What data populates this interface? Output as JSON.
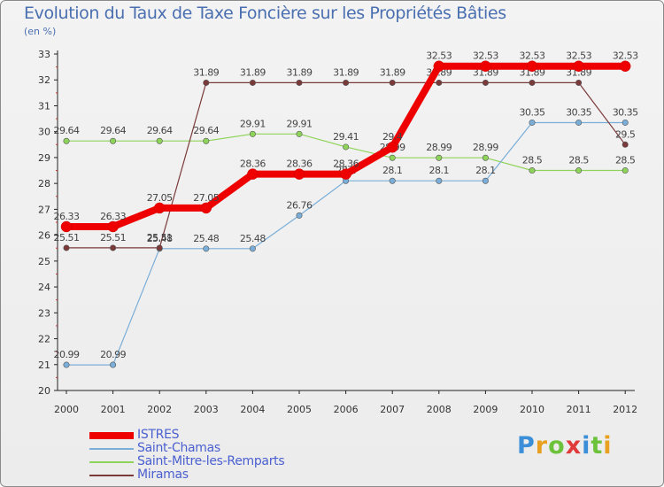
{
  "chart_data": {
    "type": "line",
    "title": "Evolution du Taux de Taxe Foncière sur les Propriétés Bâties",
    "subtitle": "(en %)",
    "x": [
      "2000",
      "2001",
      "2002",
      "2003",
      "2004",
      "2005",
      "2006",
      "2007",
      "2008",
      "2009",
      "2010",
      "2011",
      "2012"
    ],
    "ylim": [
      20,
      33
    ],
    "yticks": [
      "20",
      "21",
      "22",
      "23",
      "24",
      "25",
      "26",
      "27",
      "28",
      "29",
      "30",
      "31",
      "32",
      "33"
    ],
    "series": [
      {
        "name": "Saint-Mitre-les-Remparts",
        "color": "#8fd45a",
        "values": [
          29.64,
          29.64,
          29.64,
          29.64,
          29.91,
          29.91,
          29.41,
          28.99,
          28.99,
          28.99,
          28.5,
          28.5,
          28.5
        ],
        "labels": [
          "29.64",
          "29.64",
          "29.64",
          "29.64",
          "29.91",
          "29.91",
          "29.41",
          "28.99",
          "28.99",
          "28.99",
          "28.5",
          "28.5",
          "28.5"
        ]
      },
      {
        "name": "Saint-Chamas",
        "color": "#7aaed8",
        "values": [
          20.99,
          20.99,
          25.48,
          25.48,
          25.48,
          26.76,
          28.1,
          28.1,
          28.1,
          28.1,
          30.35,
          30.35,
          30.35
        ],
        "labels": [
          "20.99",
          "20.99",
          "25.48",
          "25.48",
          "25.48",
          "26.76",
          "28.1",
          "28.1",
          "28.1",
          "28.1",
          "30.35",
          "30.35",
          "30.35"
        ]
      },
      {
        "name": "Miramas",
        "color": "#7a3a3a",
        "values": [
          25.51,
          25.51,
          25.51,
          31.89,
          31.89,
          31.89,
          31.89,
          31.89,
          31.89,
          31.89,
          31.89,
          31.89,
          29.5
        ],
        "labels": [
          "25.51",
          "25.51",
          "25.51",
          "31.89",
          "31.89",
          "31.89",
          "31.89",
          "31.89",
          "31.89",
          "31.89",
          "31.89",
          "31.89",
          "29.5"
        ]
      },
      {
        "name": "ISTRES",
        "color": "#ee0000",
        "values": [
          26.33,
          26.33,
          27.05,
          27.05,
          28.36,
          28.36,
          28.36,
          29.4,
          32.53,
          32.53,
          32.53,
          32.53,
          32.53
        ],
        "labels": [
          "26.33",
          "26.33",
          "27.05",
          "27.05",
          "28.36",
          "28.36",
          "28.36",
          "29.4",
          "32.53",
          "32.53",
          "32.53",
          "32.53",
          "32.53"
        ]
      }
    ],
    "legend": {
      "position": "bottom-left",
      "items": [
        {
          "name": "ISTRES",
          "color": "#ee0000",
          "weight": "thick"
        },
        {
          "name": "Saint-Chamas",
          "color": "#7aaed8",
          "weight": "thin"
        },
        {
          "name": "Saint-Mitre-les-Remparts",
          "color": "#8fd45a",
          "weight": "thin"
        },
        {
          "name": "Miramas",
          "color": "#7a3a3a",
          "weight": "thin"
        }
      ]
    },
    "grid": false
  },
  "logo": {
    "text": "Proxiti",
    "letters": [
      "P",
      "r",
      "o",
      "x",
      "i",
      "t",
      "i"
    ],
    "colors": [
      "#3a8fd8",
      "#e8a020",
      "#6cc23a",
      "#e03a3a",
      "#3a8fd8",
      "#6cc23a",
      "#e8a020"
    ]
  }
}
